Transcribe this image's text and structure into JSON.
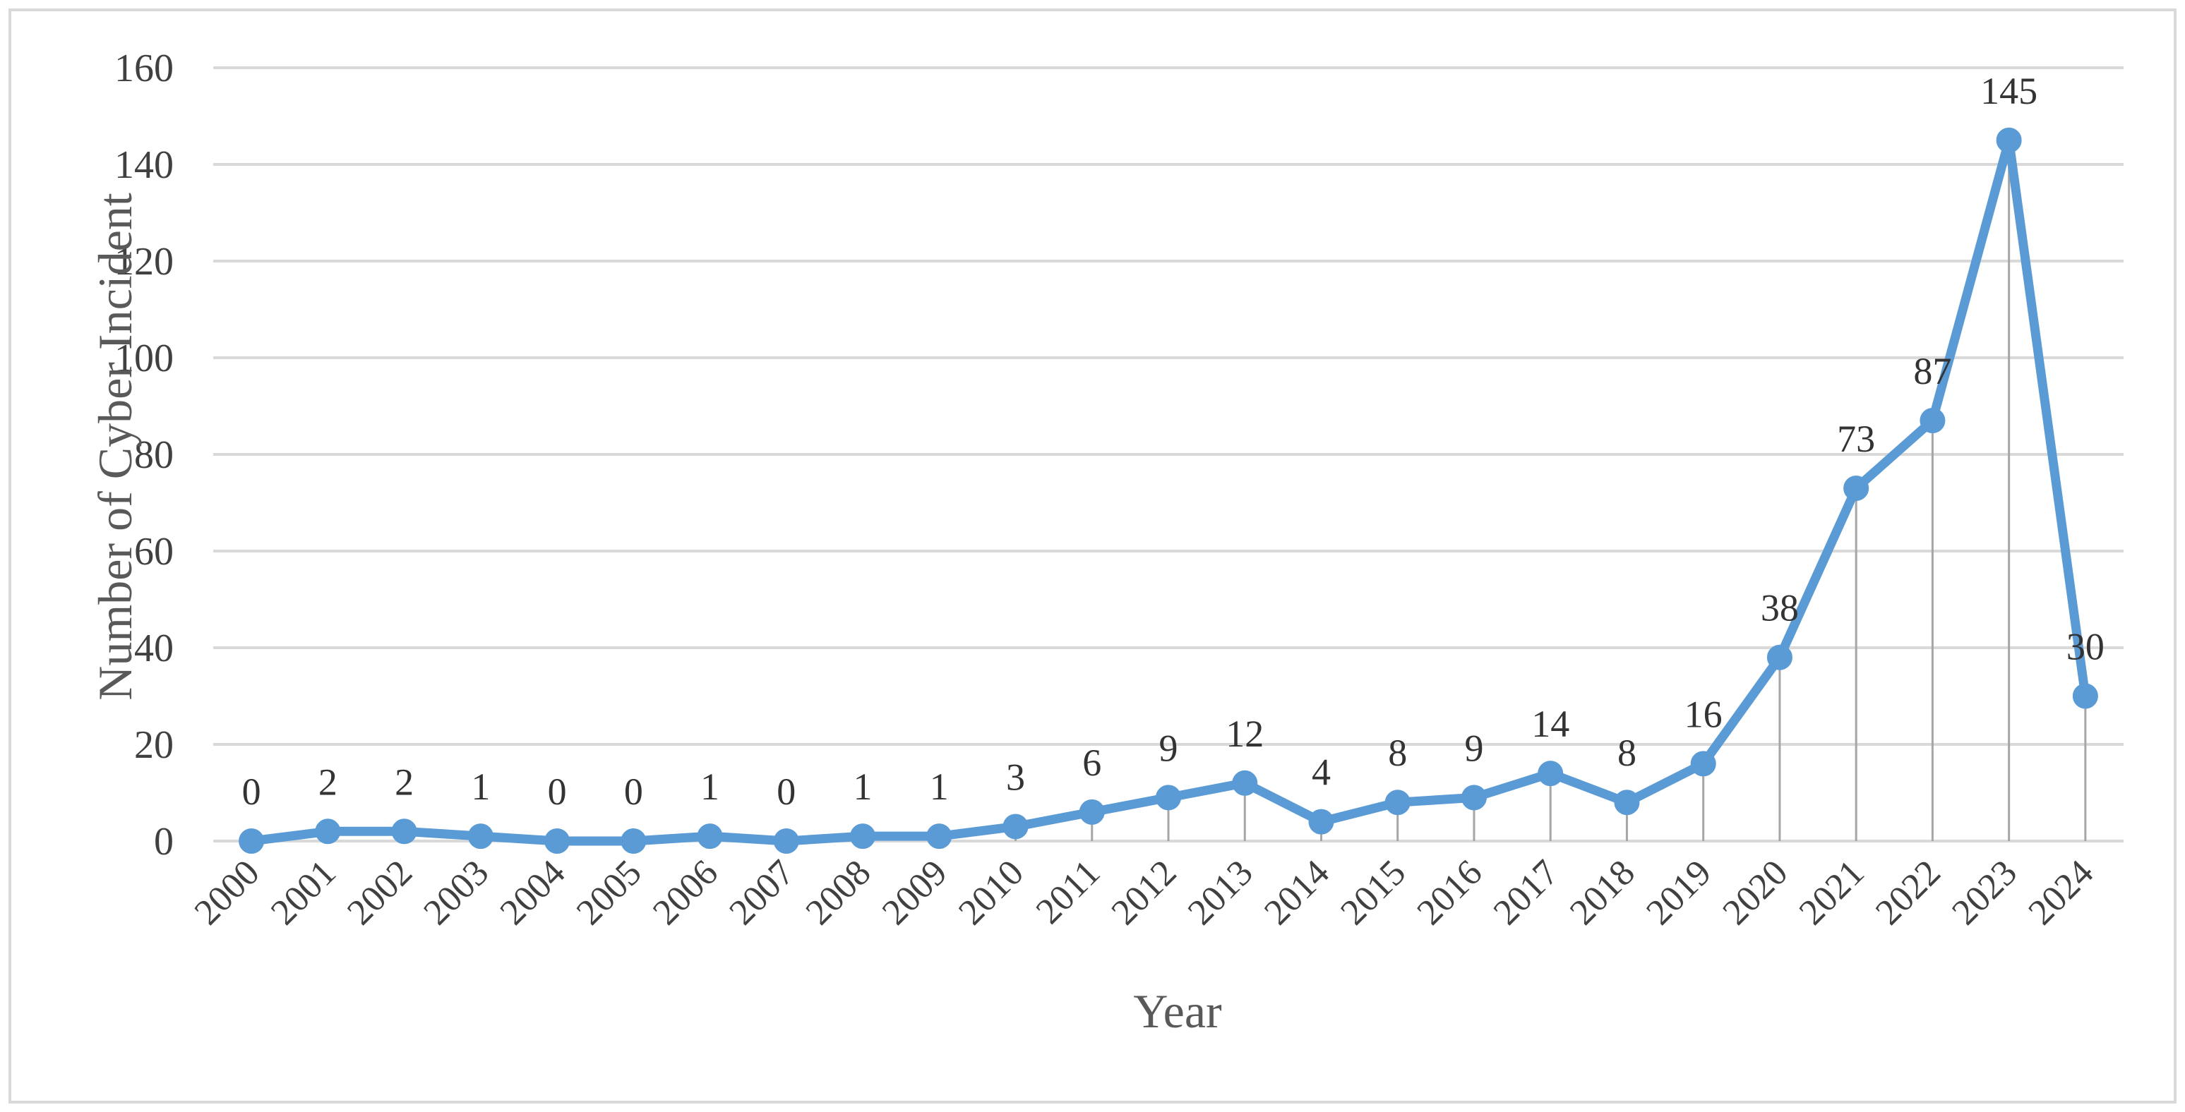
{
  "chart_data": {
    "type": "line",
    "xlabel": "Year",
    "ylabel": "Number of Cyber Incident",
    "ylim": [
      0,
      160
    ],
    "yticks": [
      0,
      20,
      40,
      60,
      80,
      100,
      120,
      140,
      160
    ],
    "categories": [
      "2000",
      "2001",
      "2002",
      "2003",
      "2004",
      "2005",
      "2006",
      "2007",
      "2008",
      "2009",
      "2010",
      "2011",
      "2012",
      "2013",
      "2014",
      "2015",
      "2016",
      "2017",
      "2018",
      "2019",
      "2020",
      "2021",
      "2022",
      "2023",
      "2024"
    ],
    "series": [
      {
        "values": [
          0,
          2,
          2,
          1,
          0,
          0,
          1,
          0,
          1,
          1,
          3,
          6,
          9,
          12,
          4,
          8,
          9,
          14,
          8,
          16,
          38,
          73,
          87,
          145,
          30
        ],
        "color": "#5b9bd5",
        "markers": true,
        "drop_lines": true,
        "data_labels": true
      }
    ],
    "grid": true,
    "legend": "none",
    "gridline_color": "#d9d9d9",
    "dropline_color": "#a6a6a6"
  }
}
